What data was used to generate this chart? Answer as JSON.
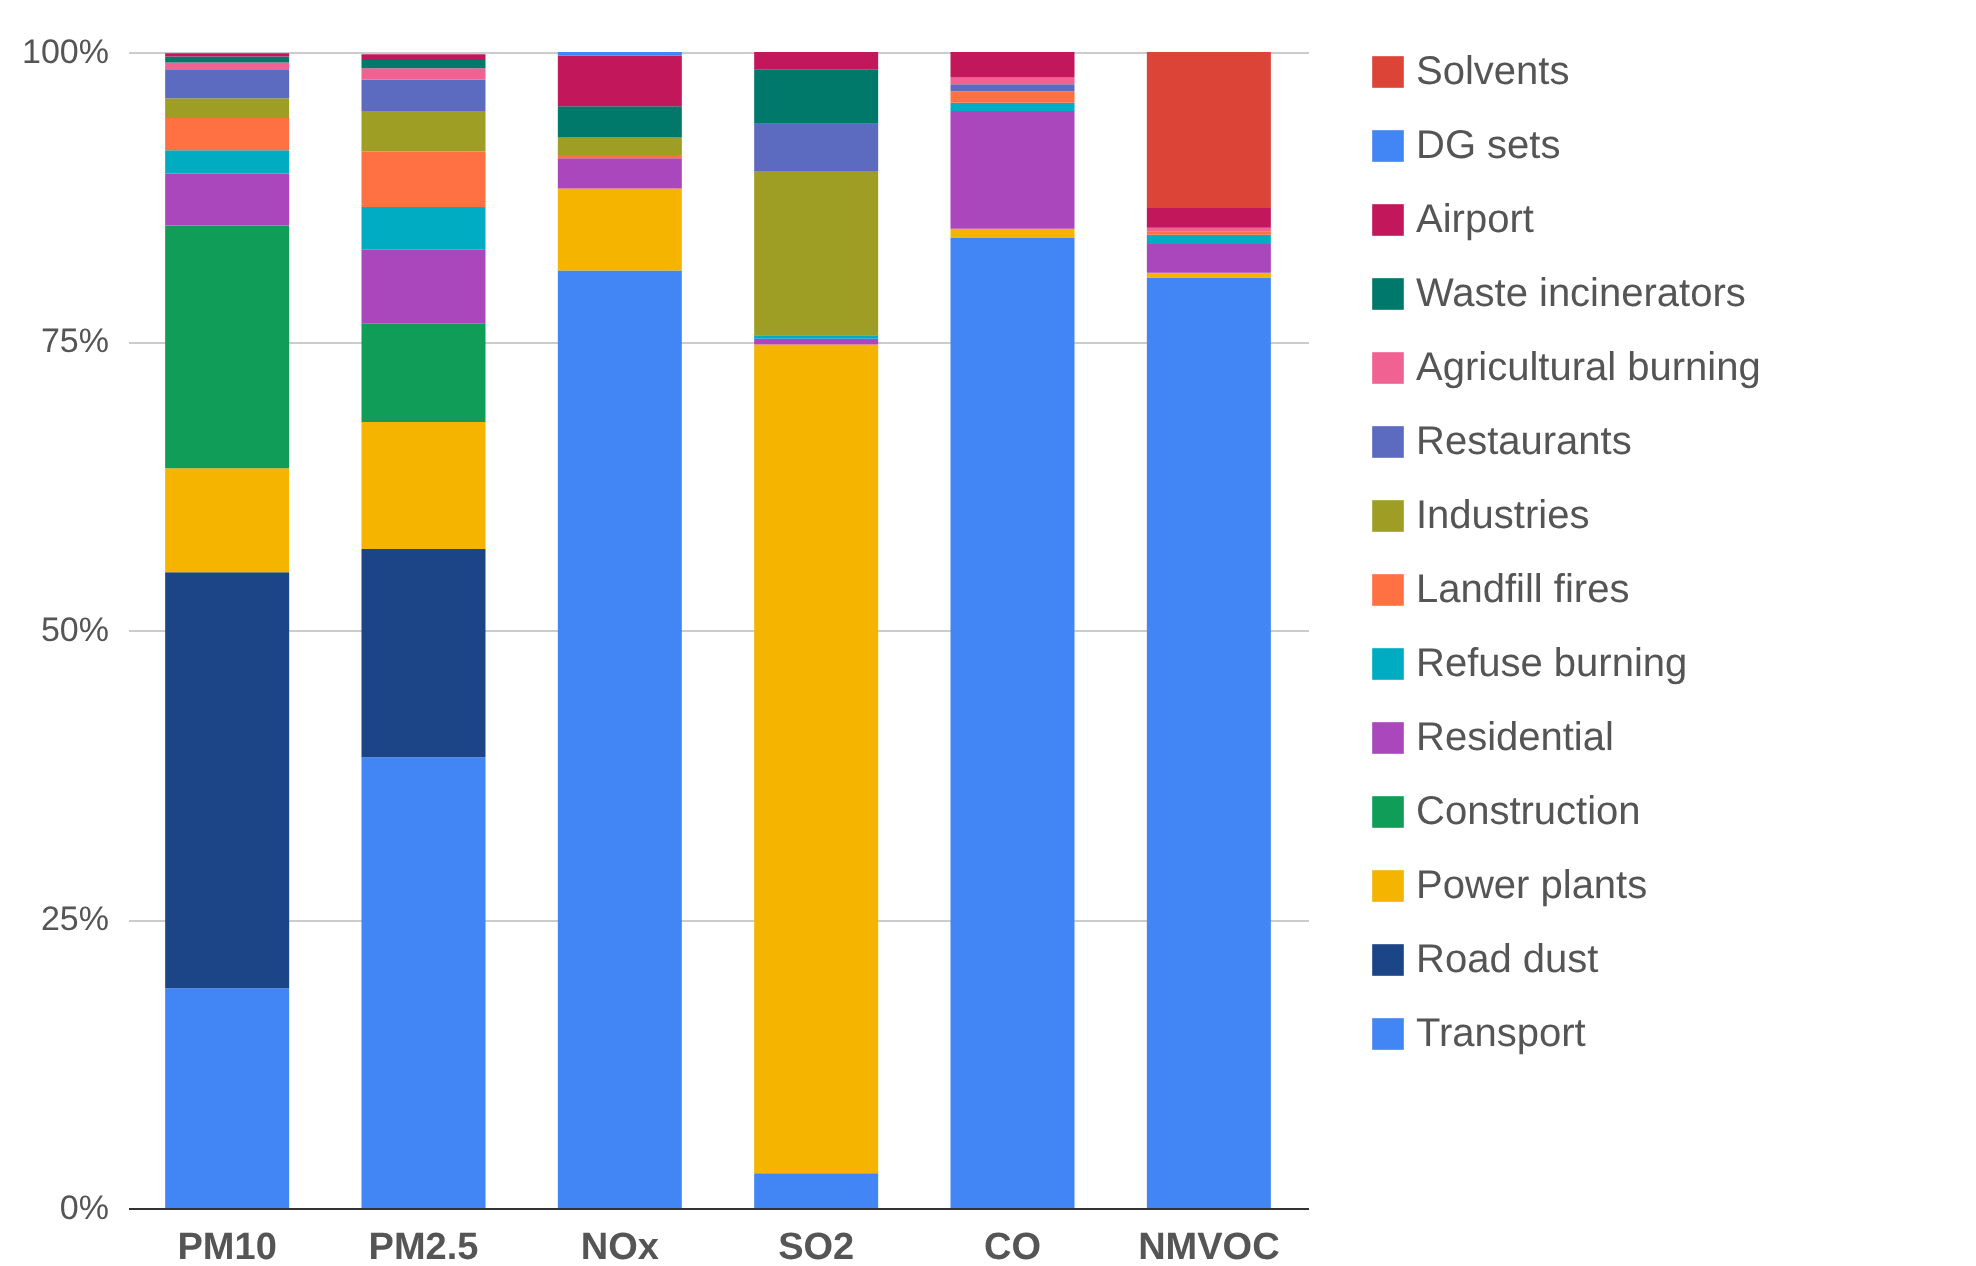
{
  "chart_data": {
    "type": "bar",
    "stacked": true,
    "categories": [
      "PM10",
      "PM2.5",
      "NOx",
      "SO2",
      "CO",
      "NMVOC"
    ],
    "series": [
      {
        "name": "Transport",
        "color": "#4285f4",
        "values": [
          19,
          39,
          81.1,
          3,
          83.9,
          80.5
        ]
      },
      {
        "name": "Road dust",
        "color": "#1c4587",
        "values": [
          36,
          18,
          null,
          null,
          null,
          null
        ]
      },
      {
        "name": "Power plants",
        "color": "#f4b400",
        "values": [
          9,
          11,
          7.1,
          71.7,
          0.8,
          0.4
        ]
      },
      {
        "name": "Construction",
        "color": "#0f9d58",
        "values": [
          21,
          8.5,
          null,
          null,
          null,
          null
        ]
      },
      {
        "name": "Residential",
        "color": "#ab47bc",
        "values": [
          4.5,
          6.4,
          2.6,
          0.5,
          10.2,
          2.5
        ]
      },
      {
        "name": "Refuse burning",
        "color": "#00acc1",
        "values": [
          2,
          3.7,
          null,
          0.3,
          0.7,
          0.8
        ]
      },
      {
        "name": "Landfill fires",
        "color": "#ff7043",
        "values": [
          2.8,
          4.8,
          0.3,
          null,
          1,
          0.3
        ]
      },
      {
        "name": "Industries",
        "color": "#9e9d24",
        "values": [
          1.7,
          3.5,
          1.5,
          14.2,
          null,
          null
        ]
      },
      {
        "name": "Restaurants",
        "color": "#5c6bc0",
        "values": [
          2.5,
          2.7,
          null,
          4.1,
          0.6,
          null
        ]
      },
      {
        "name": "Agricultural burning",
        "color": "#f06292",
        "values": [
          0.6,
          1,
          null,
          null,
          0.6,
          0.3
        ]
      },
      {
        "name": "Waste incinerators",
        "color": "#00796b",
        "values": [
          0.5,
          0.7,
          2.7,
          4.7,
          null,
          null
        ]
      },
      {
        "name": "Airport",
        "color": "#c2185b",
        "values": [
          0.3,
          0.5,
          4.4,
          1.5,
          2.2,
          1.7
        ]
      },
      {
        "name": "DG sets",
        "color": "#4285f4",
        "values": [
          null,
          null,
          0.3,
          null,
          null,
          null
        ]
      },
      {
        "name": "Solvents",
        "color": "#db4437",
        "values": [
          null,
          null,
          null,
          null,
          null,
          13.5
        ]
      }
    ],
    "ylim": [
      0,
      100
    ],
    "yticks": [
      {
        "value": 0,
        "label": "0%"
      },
      {
        "value": 25,
        "label": "25%"
      },
      {
        "value": 50,
        "label": "50%"
      },
      {
        "value": 75,
        "label": "75%"
      },
      {
        "value": 100,
        "label": "100%"
      }
    ],
    "grid": "y",
    "legend": "right"
  }
}
